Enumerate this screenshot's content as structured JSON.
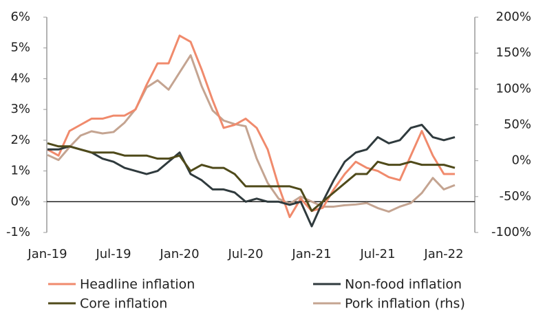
{
  "chart_data": {
    "type": "line",
    "categories": [
      "Jan-19",
      null,
      null,
      null,
      null,
      null,
      "Jul-19",
      null,
      null,
      null,
      null,
      null,
      "Jan-20",
      null,
      null,
      null,
      null,
      null,
      "Jul-20",
      null,
      null,
      null,
      null,
      null,
      "Jan-21",
      null,
      null,
      null,
      null,
      null,
      "Jul-21",
      null,
      null,
      null,
      null,
      null,
      "Jan-22",
      null
    ],
    "series": [
      {
        "name": "Headline inflation",
        "color": "#f08a6c",
        "values": [
          1.7,
          1.5,
          2.3,
          2.5,
          2.7,
          2.7,
          2.8,
          2.8,
          3.0,
          3.8,
          4.5,
          4.5,
          5.4,
          5.2,
          4.3,
          3.3,
          2.4,
          2.5,
          2.7,
          2.4,
          1.7,
          0.5,
          -0.5,
          0.1,
          -0.3,
          -0.2,
          0.4,
          0.9,
          1.3,
          1.1,
          1.0,
          0.8,
          0.7,
          1.5,
          2.3,
          1.5,
          0.9,
          0.9
        ]
      },
      {
        "name": "Non-food inflation",
        "color": "#2f3a3d",
        "values": [
          1.7,
          1.7,
          1.8,
          1.7,
          1.6,
          1.4,
          1.3,
          1.1,
          1.0,
          0.9,
          1.0,
          1.3,
          1.6,
          0.9,
          0.7,
          0.4,
          0.4,
          0.3,
          0.0,
          0.1,
          0.0,
          0.0,
          -0.1,
          0.0,
          -0.8,
          0.0,
          0.7,
          1.3,
          1.6,
          1.7,
          2.1,
          1.9,
          2.0,
          2.4,
          2.5,
          2.1,
          2.0,
          2.1
        ]
      },
      {
        "name": "Core inflation",
        "color": "#4f4a1a",
        "values": [
          1.9,
          1.8,
          1.8,
          1.7,
          1.6,
          1.6,
          1.6,
          1.5,
          1.5,
          1.5,
          1.4,
          1.4,
          1.5,
          1.0,
          1.2,
          1.1,
          1.1,
          0.9,
          0.5,
          0.5,
          0.5,
          0.5,
          0.5,
          0.4,
          -0.3,
          0.0,
          0.3,
          0.6,
          0.9,
          0.9,
          1.3,
          1.2,
          1.2,
          1.3,
          1.2,
          1.2,
          1.2,
          1.1
        ]
      },
      {
        "name": "Pork inflation (rhs)",
        "color": "#c4a491",
        "axis": "y2",
        "values": [
          8,
          1,
          19,
          35,
          41,
          38,
          40,
          53,
          72,
          102,
          112,
          99,
          123,
          147,
          104,
          70,
          56,
          51,
          48,
          3,
          -31,
          -53,
          -60,
          -50,
          -57,
          -64,
          -64,
          -62,
          -61,
          -59,
          -66,
          -71,
          -64,
          -59,
          -45,
          -24,
          -40,
          -34
        ]
      }
    ],
    "ylim": [
      -1,
      6
    ],
    "yticks": [
      {
        "value": -1,
        "label": "-1%"
      },
      {
        "value": 0,
        "label": "0%"
      },
      {
        "value": 1,
        "label": "1%"
      },
      {
        "value": 2,
        "label": "2%"
      },
      {
        "value": 3,
        "label": "3%"
      },
      {
        "value": 4,
        "label": "4%"
      },
      {
        "value": 5,
        "label": "5%"
      },
      {
        "value": 6,
        "label": "6%"
      }
    ],
    "y2lim": [
      -100,
      200
    ],
    "y2ticks": [
      {
        "value": -100,
        "label": "-100%"
      },
      {
        "value": -50,
        "label": "-50%"
      },
      {
        "value": 0,
        "label": "0%"
      },
      {
        "value": 50,
        "label": "50%"
      },
      {
        "value": 100,
        "label": "100%"
      },
      {
        "value": 150,
        "label": "150%"
      },
      {
        "value": 200,
        "label": "200%"
      }
    ],
    "grid": false
  }
}
